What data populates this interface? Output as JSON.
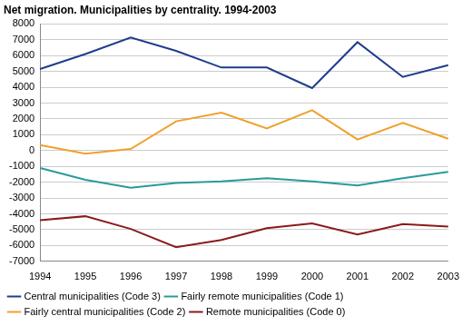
{
  "chart_data": {
    "type": "line",
    "title": "Net migration. Municipalities by centrality. 1994-2003",
    "categories": [
      "1994",
      "1995",
      "1996",
      "1997",
      "1998",
      "1999",
      "2000",
      "2001",
      "2002",
      "2003"
    ],
    "series": [
      {
        "name": "Central municipalities (Code 3)",
        "color": "#1f3d8f",
        "values": [
          5150,
          6100,
          7150,
          6300,
          5250,
          5250,
          3950,
          6850,
          4650,
          5400
        ]
      },
      {
        "name": "Fairly remote municipalities (Code 1)",
        "color": "#2a9a9a",
        "values": [
          -1100,
          -1850,
          -2350,
          -2050,
          -1950,
          -1750,
          -1950,
          -2200,
          -1750,
          -1350
        ]
      },
      {
        "name": "Fairly central municipalities (Code 2)",
        "color": "#f0a02c",
        "values": [
          350,
          -200,
          100,
          1850,
          2400,
          1400,
          2550,
          700,
          1750,
          750
        ]
      },
      {
        "name": "Remote municipalities (Code 0)",
        "color": "#8b1a1a",
        "values": [
          -4400,
          -4150,
          -4950,
          -6100,
          -5650,
          -4900,
          -4600,
          -5300,
          -4650,
          -4800
        ]
      }
    ],
    "ylim": [
      -7000,
      8000
    ],
    "yticks": [
      -7000,
      -6000,
      -5000,
      -4000,
      -3000,
      -2000,
      -1000,
      0,
      1000,
      2000,
      3000,
      4000,
      5000,
      6000,
      7000,
      8000
    ],
    "grid": true,
    "legend": "bottom"
  }
}
